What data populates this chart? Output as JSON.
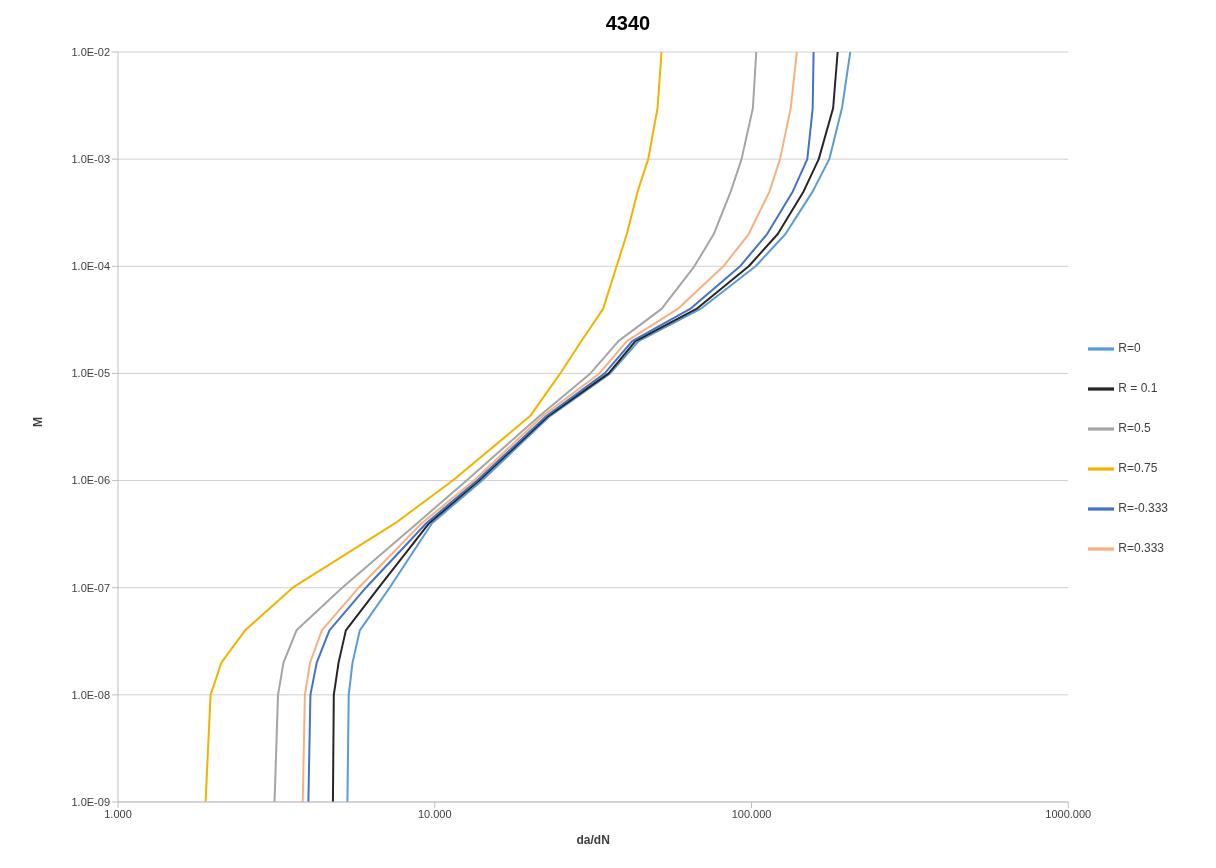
{
  "chart_data": {
    "type": "line",
    "title": "4340",
    "xlabel": "da/dN",
    "ylabel": "M",
    "log": "xy",
    "grid": "y",
    "legend": "right",
    "marker": "none",
    "line_style": "solid",
    "xlim": [
      1,
      1000
    ],
    "xticks": [
      {
        "value": 1,
        "label": "1.000"
      },
      {
        "value": 10,
        "label": "10.000"
      },
      {
        "value": 100,
        "label": "100.000"
      },
      {
        "value": 1000,
        "label": "1000.000"
      }
    ],
    "ylim": [
      1e-09,
      0.01
    ],
    "yticks": [
      {
        "value": 1e-09,
        "label": "1.0E-09"
      },
      {
        "value": 1e-08,
        "label": "1.0E-08"
      },
      {
        "value": 1e-07,
        "label": "1.0E-07"
      },
      {
        "value": 1e-06,
        "label": "1.0E-06"
      },
      {
        "value": 1e-05,
        "label": "1.0E-05"
      },
      {
        "value": 0.0001,
        "label": "1.0E-04"
      },
      {
        "value": 0.001,
        "label": "1.0E-03"
      },
      {
        "value": 0.01,
        "label": "1.0E-02"
      }
    ],
    "series": [
      {
        "name": "R=0",
        "color": "#5b9bd5",
        "x": [
          5.3,
          5.35,
          5.5,
          5.8,
          7.2,
          9.8,
          14.1,
          23.1,
          35.8,
          44,
          69,
          103,
          128,
          156,
          176,
          193,
          205
        ],
        "values": [
          1e-09,
          1e-08,
          2e-08,
          4e-08,
          1e-07,
          4e-07,
          1e-06,
          4e-06,
          1e-05,
          2e-05,
          4e-05,
          0.0001,
          0.0002,
          0.0005,
          0.001,
          0.003,
          0.01
        ]
      },
      {
        "name": "R = 0.1",
        "color": "#262626",
        "x": [
          4.77,
          4.8,
          4.97,
          5.24,
          6.65,
          9.6,
          13.8,
          22.8,
          35.4,
          43,
          67,
          98,
          121,
          146,
          163,
          181,
          187
        ],
        "values": [
          1e-09,
          1e-08,
          2e-08,
          4e-08,
          1e-07,
          4e-07,
          1e-06,
          4e-06,
          1e-05,
          2e-05,
          4e-05,
          0.0001,
          0.0002,
          0.0005,
          0.001,
          0.003,
          0.01
        ]
      },
      {
        "name": "R=0.5",
        "color": "#a5a5a5",
        "x": [
          3.12,
          3.2,
          3.33,
          3.66,
          5.1,
          8.8,
          12.6,
          21.4,
          31,
          38,
          52,
          66,
          76,
          86,
          93,
          101,
          103.5
        ],
        "values": [
          1e-09,
          1e-08,
          2e-08,
          4e-08,
          1e-07,
          4e-07,
          1e-06,
          4e-06,
          1e-05,
          2e-05,
          4e-05,
          0.0001,
          0.0002,
          0.0005,
          0.001,
          0.003,
          0.01
        ]
      },
      {
        "name": "R=0.75",
        "color": "#f0b400",
        "x": [
          1.89,
          1.96,
          2.12,
          2.52,
          3.56,
          7.5,
          11.4,
          20,
          24.9,
          29,
          34,
          37.5,
          40.4,
          43.7,
          47.2,
          50.5,
          52
        ],
        "values": [
          1e-09,
          1e-08,
          2e-08,
          4e-08,
          1e-07,
          4e-07,
          1e-06,
          4e-06,
          1e-05,
          2e-05,
          4e-05,
          0.0001,
          0.0002,
          0.0005,
          0.001,
          0.003,
          0.01
        ]
      },
      {
        "name": "R=-0.333",
        "color": "#4472c4",
        "x": [
          3.99,
          4.05,
          4.24,
          4.65,
          6.06,
          9.4,
          13.6,
          22.5,
          34.4,
          42,
          64,
          92,
          112,
          135,
          150,
          156,
          157
        ],
        "values": [
          1e-09,
          1e-08,
          2e-08,
          4e-08,
          1e-07,
          4e-07,
          1e-06,
          4e-06,
          1e-05,
          2e-05,
          4e-05,
          0.0001,
          0.0002,
          0.0005,
          0.001,
          0.003,
          0.01
        ]
      },
      {
        "name": "R=0.333",
        "color": "#f4b183",
        "x": [
          3.83,
          3.89,
          4.04,
          4.4,
          5.75,
          9.1,
          13.3,
          21.9,
          33.1,
          40.4,
          58.5,
          81.5,
          98,
          114,
          123,
          133,
          139
        ],
        "values": [
          1e-09,
          1e-08,
          2e-08,
          4e-08,
          1e-07,
          4e-07,
          1e-06,
          4e-06,
          1e-05,
          2e-05,
          4e-05,
          0.0001,
          0.0002,
          0.0005,
          0.001,
          0.003,
          0.01
        ]
      }
    ]
  }
}
